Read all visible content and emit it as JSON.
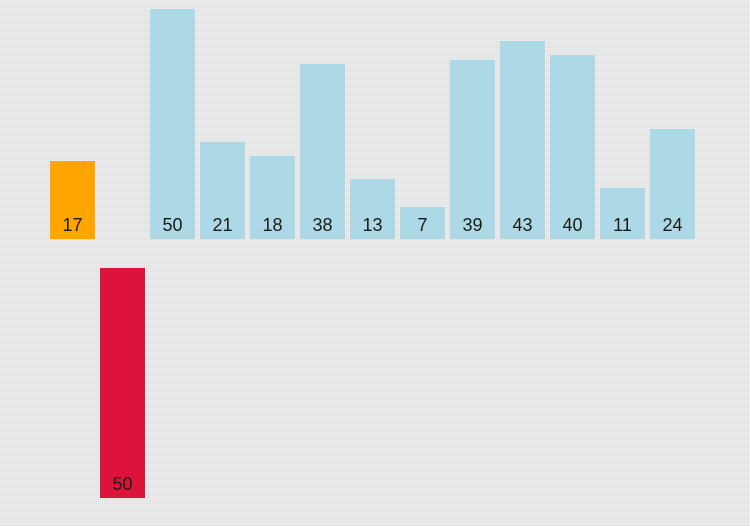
{
  "colors": {
    "default": "#add8e6",
    "key": "#ffa500",
    "highlight": "#dc143c"
  },
  "scale_max": 50,
  "key_bar": {
    "value": 17,
    "color_role": "key"
  },
  "array_bars": [
    {
      "value": 50
    },
    {
      "value": 21
    },
    {
      "value": 18
    },
    {
      "value": 38
    },
    {
      "value": 13
    },
    {
      "value": 7
    },
    {
      "value": 39
    },
    {
      "value": 43
    },
    {
      "value": 40
    },
    {
      "value": 11
    },
    {
      "value": 24
    }
  ],
  "compare_bar": {
    "value": 50,
    "color_role": "highlight"
  }
}
